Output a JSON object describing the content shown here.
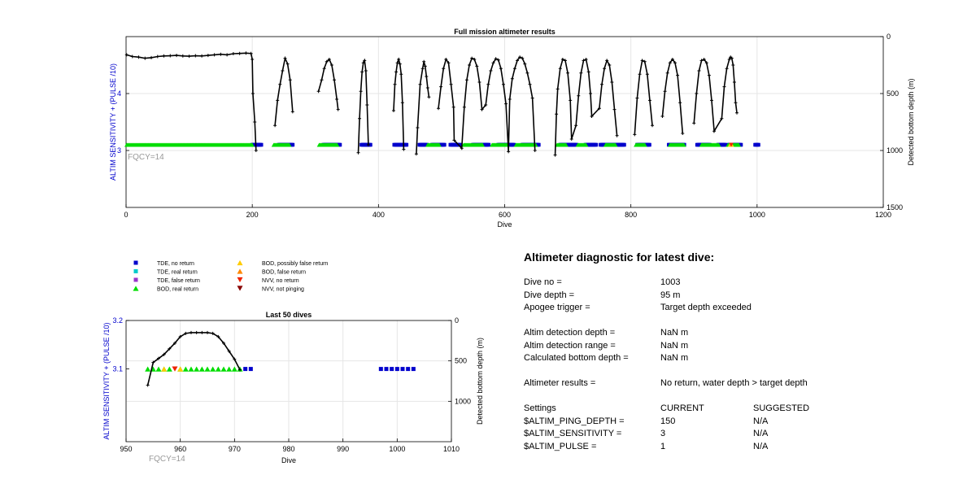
{
  "chart_data": [
    {
      "type": "scatter",
      "title": "Full mission altimeter results",
      "xlabel": "Dive",
      "ylabel_left": "ALTIM SENSITIVITY + (PULSE /10)",
      "ylabel_right": "Detected bottom depth (m)",
      "annotation": "FQCY=14",
      "xlim": [
        0,
        1200
      ],
      "ylim_left": [
        2,
        5
      ],
      "ylim_right": [
        1500,
        0
      ],
      "xticks": [
        "0",
        "200",
        "400",
        "600",
        "800",
        "1000",
        "1200"
      ],
      "yticks_left": [
        "3",
        "4"
      ],
      "yticks_right": [
        "0",
        "500",
        "1000",
        "1500"
      ],
      "grid": true,
      "sensitivity_level": 3.1,
      "bod_real_return_segments": [
        [
          1,
          200
        ],
        [
          234,
          260
        ],
        [
          306,
          335
        ],
        [
          478,
          497
        ],
        [
          535,
          566
        ],
        [
          580,
          605
        ],
        [
          618,
          650
        ],
        [
          683,
          698
        ],
        [
          716,
          730
        ],
        [
          760,
          776
        ],
        [
          808,
          823
        ],
        [
          862,
          885
        ],
        [
          912,
          940
        ],
        [
          954,
          971
        ]
      ],
      "tde_no_return_segments": [
        [
          200,
          215
        ],
        [
          242,
          265
        ],
        [
          313,
          340
        ],
        [
          373,
          388
        ],
        [
          425,
          445
        ],
        [
          465,
          477
        ],
        [
          485,
          505
        ],
        [
          514,
          530
        ],
        [
          550,
          575
        ],
        [
          590,
          615
        ],
        [
          628,
          655
        ],
        [
          688,
          715
        ],
        [
          728,
          745
        ],
        [
          752,
          768
        ],
        [
          770,
          790
        ],
        [
          810,
          830
        ],
        [
          860,
          885
        ],
        [
          905,
          925
        ],
        [
          938,
          950
        ],
        [
          955,
          975
        ],
        [
          997,
          1003
        ]
      ],
      "bod_possibly_false_return_dives": [
        957,
        960
      ],
      "nvv_no_return_dives": [
        959
      ],
      "depth_profile_approx": [
        [
          1,
          160
        ],
        [
          10,
          175
        ],
        [
          20,
          180
        ],
        [
          30,
          190
        ],
        [
          40,
          185
        ],
        [
          50,
          175
        ],
        [
          60,
          170
        ],
        [
          70,
          168
        ],
        [
          80,
          165
        ],
        [
          90,
          170
        ],
        [
          100,
          172
        ],
        [
          110,
          168
        ],
        [
          120,
          170
        ],
        [
          130,
          165
        ],
        [
          140,
          160
        ],
        [
          150,
          155
        ],
        [
          160,
          160
        ],
        [
          170,
          150
        ],
        [
          180,
          148
        ],
        [
          190,
          145
        ],
        [
          198,
          148
        ],
        [
          200,
          200
        ],
        [
          201,
          500
        ],
        [
          204,
          750
        ],
        [
          206,
          1000
        ],
        [
          236,
          780
        ],
        [
          240,
          560
        ],
        [
          244,
          420
        ],
        [
          248,
          300
        ],
        [
          252,
          190
        ],
        [
          256,
          240
        ],
        [
          260,
          380
        ],
        [
          264,
          660
        ],
        [
          305,
          480
        ],
        [
          310,
          380
        ],
        [
          314,
          280
        ],
        [
          318,
          220
        ],
        [
          322,
          200
        ],
        [
          326,
          250
        ],
        [
          330,
          380
        ],
        [
          334,
          550
        ],
        [
          336,
          640
        ],
        [
          368,
          1020
        ],
        [
          370,
          720
        ],
        [
          372,
          480
        ],
        [
          374,
          310
        ],
        [
          376,
          230
        ],
        [
          378,
          210
        ],
        [
          380,
          300
        ],
        [
          382,
          600
        ],
        [
          384,
          950
        ],
        [
          424,
          650
        ],
        [
          426,
          420
        ],
        [
          428,
          310
        ],
        [
          430,
          230
        ],
        [
          432,
          200
        ],
        [
          434,
          240
        ],
        [
          436,
          330
        ],
        [
          438,
          580
        ],
        [
          440,
          990
        ],
        [
          460,
          1030
        ],
        [
          462,
          800
        ],
        [
          466,
          420
        ],
        [
          470,
          280
        ],
        [
          472,
          220
        ],
        [
          474,
          260
        ],
        [
          476,
          350
        ],
        [
          478,
          450
        ],
        [
          480,
          530
        ],
        [
          495,
          630
        ],
        [
          499,
          440
        ],
        [
          503,
          280
        ],
        [
          507,
          200
        ],
        [
          511,
          230
        ],
        [
          515,
          420
        ],
        [
          519,
          620
        ],
        [
          520,
          910
        ],
        [
          532,
          980
        ],
        [
          536,
          620
        ],
        [
          540,
          380
        ],
        [
          544,
          250
        ],
        [
          548,
          190
        ],
        [
          552,
          200
        ],
        [
          556,
          260
        ],
        [
          560,
          400
        ],
        [
          564,
          640
        ],
        [
          570,
          600
        ],
        [
          574,
          420
        ],
        [
          578,
          300
        ],
        [
          582,
          230
        ],
        [
          586,
          195
        ],
        [
          590,
          205
        ],
        [
          594,
          280
        ],
        [
          598,
          420
        ],
        [
          602,
          590
        ],
        [
          606,
          1010
        ],
        [
          608,
          550
        ],
        [
          612,
          370
        ],
        [
          616,
          280
        ],
        [
          620,
          210
        ],
        [
          624,
          180
        ],
        [
          628,
          190
        ],
        [
          632,
          240
        ],
        [
          636,
          320
        ],
        [
          640,
          420
        ],
        [
          644,
          540
        ],
        [
          648,
          1000
        ],
        [
          680,
          1040
        ],
        [
          682,
          680
        ],
        [
          684,
          460
        ],
        [
          688,
          280
        ],
        [
          692,
          200
        ],
        [
          696,
          210
        ],
        [
          700,
          320
        ],
        [
          704,
          560
        ],
        [
          706,
          900
        ],
        [
          713,
          780
        ],
        [
          717,
          520
        ],
        [
          721,
          320
        ],
        [
          725,
          210
        ],
        [
          729,
          200
        ],
        [
          733,
          310
        ],
        [
          736,
          500
        ],
        [
          738,
          700
        ],
        [
          750,
          630
        ],
        [
          754,
          420
        ],
        [
          758,
          280
        ],
        [
          762,
          210
        ],
        [
          766,
          250
        ],
        [
          770,
          400
        ],
        [
          774,
          640
        ],
        [
          778,
          870
        ],
        [
          806,
          860
        ],
        [
          810,
          540
        ],
        [
          814,
          330
        ],
        [
          818,
          210
        ],
        [
          822,
          220
        ],
        [
          826,
          330
        ],
        [
          830,
          560
        ],
        [
          834,
          780
        ],
        [
          850,
          700
        ],
        [
          854,
          480
        ],
        [
          858,
          320
        ],
        [
          862,
          230
        ],
        [
          866,
          200
        ],
        [
          870,
          230
        ],
        [
          874,
          340
        ],
        [
          878,
          580
        ],
        [
          882,
          850
        ],
        [
          900,
          760
        ],
        [
          904,
          500
        ],
        [
          908,
          300
        ],
        [
          912,
          210
        ],
        [
          916,
          200
        ],
        [
          920,
          230
        ],
        [
          924,
          340
        ],
        [
          928,
          560
        ],
        [
          932,
          830
        ],
        [
          944,
          720
        ],
        [
          948,
          440
        ],
        [
          952,
          280
        ],
        [
          956,
          200
        ],
        [
          958,
          180
        ],
        [
          960,
          190
        ],
        [
          962,
          250
        ],
        [
          964,
          400
        ],
        [
          966,
          580
        ],
        [
          968,
          670
        ]
      ]
    },
    {
      "type": "scatter",
      "title": "Last 50 dives",
      "xlabel": "Dive",
      "ylabel_left": "ALTIM SENSITIVITY + (PULSE /10)",
      "ylabel_right": "Detected bottom depth (m)",
      "annotation": "FQCY=14",
      "xlim": [
        950,
        1010
      ],
      "ylim_left": [
        2.95,
        3.2
      ],
      "ylim_right": [
        1500,
        0
      ],
      "xticks": [
        "950",
        "960",
        "970",
        "980",
        "990",
        "1000",
        "1010"
      ],
      "yticks_left": [
        "3.1",
        "3.2"
      ],
      "yticks_right": [
        "0",
        "500",
        "1000"
      ],
      "grid": true,
      "bod_real_return": {
        "x": [
          954,
          955,
          956,
          957,
          958,
          960,
          961,
          962,
          963,
          964,
          965,
          966,
          967,
          968,
          969,
          970,
          971
        ],
        "y": 3.1
      },
      "bod_possibly_false_return": {
        "x": [
          957,
          960
        ],
        "y": 3.1
      },
      "nvv_no_return": {
        "x": [
          959
        ],
        "y": 3.1
      },
      "tde_no_return": {
        "x": [
          972,
          973,
          997,
          998,
          999,
          1000,
          1001,
          1002,
          1003
        ],
        "y": 3.1
      },
      "depth": {
        "x": [
          954,
          955,
          956,
          957,
          958,
          959,
          960,
          961,
          962,
          963,
          964,
          965,
          966,
          967,
          968,
          969,
          970,
          971
        ],
        "y": [
          800,
          520,
          470,
          420,
          350,
          280,
          200,
          160,
          150,
          150,
          150,
          150,
          160,
          200,
          280,
          380,
          480,
          610
        ]
      }
    }
  ],
  "legend": {
    "items": [
      {
        "label": "TDE, no return",
        "shape": "square",
        "color": "#0000cc"
      },
      {
        "label": "TDE, real return",
        "shape": "square",
        "color": "#00cccc"
      },
      {
        "label": "TDE, false return",
        "shape": "square",
        "color": "#9933cc"
      },
      {
        "label": "BOD, real return",
        "shape": "triangle-up",
        "color": "#00dd00"
      },
      {
        "label": "BOD, possibly false return",
        "shape": "triangle-up",
        "color": "#ffcc00"
      },
      {
        "label": "BOD, false return",
        "shape": "triangle-up",
        "color": "#ff8800"
      },
      {
        "label": "NVV, no return",
        "shape": "triangle-down",
        "color": "#ee2200"
      },
      {
        "label": "NVV, not pinging",
        "shape": "triangle-down",
        "color": "#880000"
      }
    ]
  },
  "diagnostic": {
    "title": "Altimeter diagnostic for latest dive:",
    "dive_no_label": "Dive no =",
    "dive_no": "1003",
    "dive_depth_label": "Dive depth =",
    "dive_depth": "95 m",
    "apogee_label": "Apogee trigger =",
    "apogee": "Target depth exceeded",
    "det_depth_label": "Altim detection depth =",
    "det_depth": "NaN m",
    "det_range_label": "Altim detection range =",
    "det_range": "NaN m",
    "calc_bottom_label": "Calculated bottom depth =",
    "calc_bottom": "NaN m",
    "results_label": "Altimeter results =",
    "results": "No return, water depth > target depth",
    "settings_label": "Settings",
    "current_header": "CURRENT",
    "suggested_header": "SUGGESTED",
    "ping_depth_label": "$ALTIM_PING_DEPTH =",
    "ping_depth_current": "150",
    "ping_depth_suggested": "N/A",
    "sensitivity_label": "$ALTIM_SENSITIVITY =",
    "sensitivity_current": "3",
    "sensitivity_suggested": "N/A",
    "pulse_label": "$ALTIM_PULSE =",
    "pulse_current": "1",
    "pulse_suggested": "N/A"
  },
  "colors": {
    "axis_label_blue": "#0000cc",
    "grid": "#e6e6e6",
    "profile": "#000000",
    "annotation_gray": "#999999"
  }
}
